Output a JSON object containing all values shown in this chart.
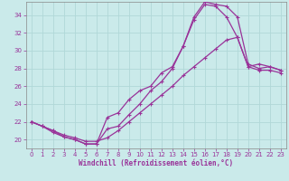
{
  "xlabel": "Windchill (Refroidissement éolien,°C)",
  "ylabel": "",
  "bg_color": "#caeaea",
  "line_color": "#993399",
  "grid_color": "#b0d8d8",
  "xlim": [
    -0.5,
    23.5
  ],
  "ylim": [
    19.0,
    35.5
  ],
  "yticks": [
    20,
    22,
    24,
    26,
    28,
    30,
    32,
    34
  ],
  "xticks": [
    0,
    1,
    2,
    3,
    4,
    5,
    6,
    7,
    8,
    9,
    10,
    11,
    12,
    13,
    14,
    15,
    16,
    17,
    18,
    19,
    20,
    21,
    22,
    23
  ],
  "series1_x": [
    0,
    1,
    2,
    3,
    4,
    5,
    6,
    7,
    8,
    9,
    10,
    11,
    12,
    13,
    14,
    15,
    16,
    17,
    18,
    19,
    20,
    21,
    22,
    23
  ],
  "series1_y": [
    22.0,
    21.5,
    20.8,
    20.3,
    20.0,
    19.5,
    19.5,
    22.5,
    23.0,
    24.5,
    25.5,
    26.0,
    27.5,
    28.2,
    30.5,
    33.5,
    35.2,
    35.0,
    33.8,
    31.5,
    28.2,
    28.5,
    28.2,
    27.8
  ],
  "series2_x": [
    0,
    1,
    2,
    3,
    4,
    5,
    6,
    7,
    8,
    9,
    10,
    11,
    12,
    13,
    14,
    15,
    16,
    17,
    18,
    19,
    20,
    21,
    22,
    23
  ],
  "series2_y": [
    22.0,
    21.5,
    21.0,
    20.3,
    20.0,
    19.5,
    19.5,
    21.2,
    21.5,
    22.8,
    24.0,
    25.5,
    26.5,
    28.0,
    30.5,
    33.8,
    35.5,
    35.2,
    35.0,
    33.8,
    28.5,
    28.0,
    28.2,
    27.8
  ],
  "series3_x": [
    0,
    1,
    2,
    3,
    4,
    5,
    6,
    7,
    8,
    9,
    10,
    11,
    12,
    13,
    14,
    15,
    16,
    17,
    18,
    19,
    20,
    21,
    22,
    23
  ],
  "series3_y": [
    22.0,
    21.5,
    21.0,
    20.5,
    20.2,
    19.8,
    19.8,
    20.2,
    21.0,
    22.0,
    23.0,
    24.0,
    25.0,
    26.0,
    27.2,
    28.2,
    29.2,
    30.2,
    31.2,
    31.5,
    28.2,
    27.8,
    27.8,
    27.5
  ]
}
